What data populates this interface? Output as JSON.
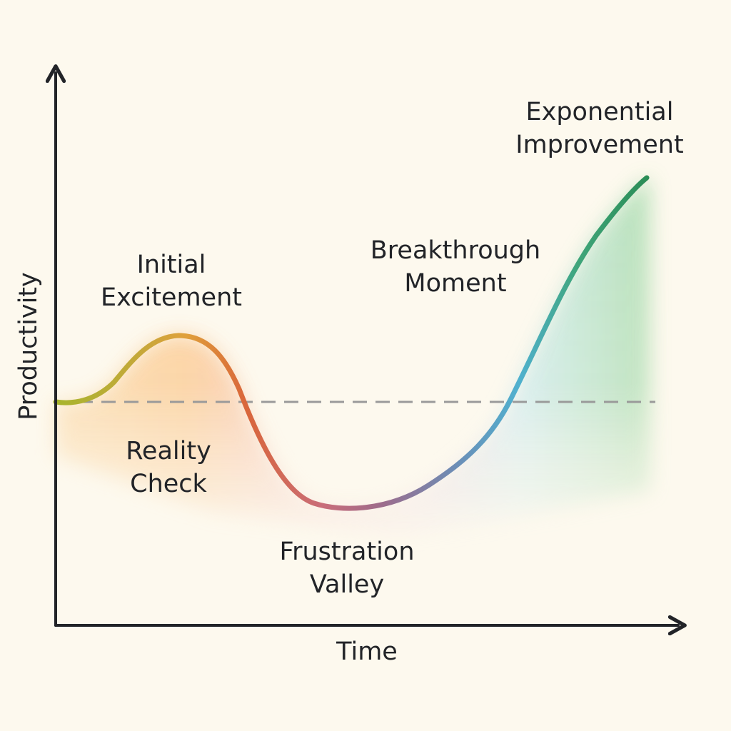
{
  "diagram": {
    "x_axis_label": "Time",
    "y_axis_label": "Productivity",
    "stages": {
      "initial_excitement": [
        "Initial",
        "Excitement"
      ],
      "reality_check": [
        "Reality",
        "Check"
      ],
      "frustration_valley": [
        "Frustration",
        "Valley"
      ],
      "breakthrough_moment": [
        "Breakthrough",
        "Moment"
      ],
      "exponential_improvement": [
        "Exponential",
        "Improvement"
      ]
    },
    "colors": {
      "background": "#fdf9ee",
      "axis": "#222428",
      "baseline": "#9a9a9a",
      "curve_start": "#a7b52e",
      "curve_peak": "#e0a03a",
      "curve_drop": "#d9663a",
      "curve_valley": "#9d6c8c",
      "curve_rise": "#4fb1cf",
      "curve_end": "#2a8c55",
      "area_warm": "#fbcf9a",
      "area_pink": "#f5c5c5",
      "area_cool": "#cfe9ee",
      "area_green": "#b7e0b8"
    }
  }
}
